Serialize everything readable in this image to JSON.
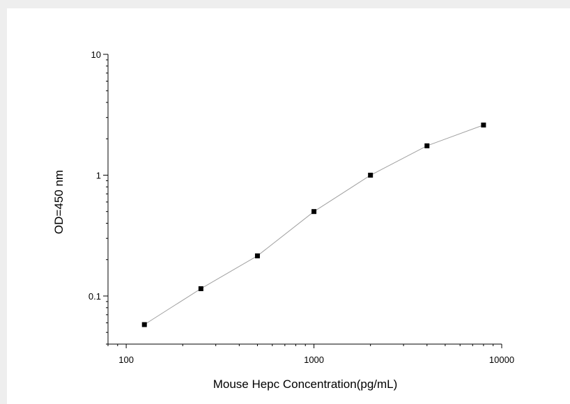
{
  "chart_data": {
    "type": "line",
    "xlabel": "Mouse Hepc  Concentration(pg/mL)",
    "ylabel": "OD=450 nm",
    "x_scale": "log",
    "y_scale": "log",
    "xlim": [
      80,
      10000
    ],
    "ylim": [
      0.04,
      10
    ],
    "x_ticks": [
      100,
      1000,
      10000
    ],
    "x_tick_labels": [
      "100",
      "1000",
      "10000"
    ],
    "y_ticks": [
      0.1,
      1,
      10
    ],
    "y_tick_labels": [
      "0.1",
      "1",
      "10"
    ],
    "grid": false,
    "legend": "none",
    "marker": "square",
    "line_color": "#a0a0a0",
    "marker_color": "#000000",
    "series": [
      {
        "x": [
          125,
          250,
          500,
          1000,
          2000,
          4000,
          8000
        ],
        "y": [
          0.058,
          0.115,
          0.215,
          0.5,
          1.0,
          1.75,
          2.6
        ]
      }
    ]
  }
}
